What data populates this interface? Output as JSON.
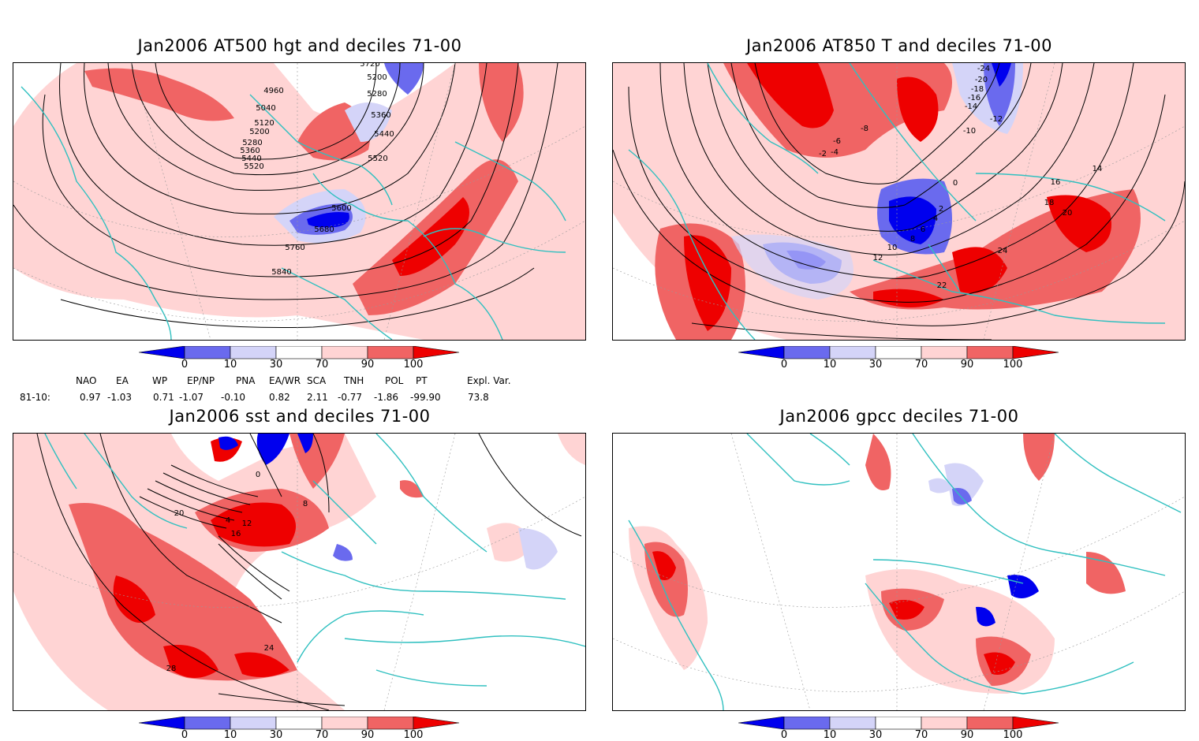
{
  "panels": [
    {
      "id": "p1",
      "title": "Jan2006 AT500 hgt and deciles 71-00",
      "contour_labels": [
        "4960",
        "5040",
        "5120",
        "5200",
        "5280",
        "5360",
        "5440",
        "5520",
        "5600",
        "5680",
        "5760",
        "5840",
        "5200",
        "5280",
        "5360",
        "5440",
        "5520",
        "5720"
      ]
    },
    {
      "id": "p2",
      "title": "Jan2006 AT850 T and deciles 71-00",
      "contour_labels": [
        "-24",
        "-20",
        "-18",
        "-16",
        "-14",
        "-12",
        "-10",
        "-8",
        "-6",
        "-4",
        "-2",
        "0",
        "2",
        "4",
        "6",
        "8",
        "10",
        "12",
        "14",
        "16",
        "18",
        "20",
        "22",
        "24"
      ]
    },
    {
      "id": "p3",
      "title": "Jan2006 sst and deciles 71-00",
      "contour_labels": [
        "0",
        "4",
        "8",
        "12",
        "16",
        "20",
        "24",
        "28"
      ]
    },
    {
      "id": "p4",
      "title": "Jan2006 gpcc deciles 71-00",
      "contour_labels": []
    }
  ],
  "colorbar": {
    "labels": [
      "0",
      "10",
      "30",
      "70",
      "90",
      "100"
    ],
    "colors": [
      "#0000ee",
      "#6a6aee",
      "#d4d4f8",
      "#ffffff",
      "#ffd4d4",
      "#f06464",
      "#ee0000"
    ]
  },
  "indices": {
    "row_label": "81-10:",
    "headers": [
      "NAO",
      "EA",
      "WP",
      "EP/NP",
      "PNA",
      "EA/WR",
      "SCA",
      "TNH",
      "POL",
      "PT",
      "Expl. Var."
    ],
    "values": [
      "0.97",
      "-1.03",
      "0.71",
      "-1.07",
      "-0.10",
      "0.82",
      "2.11",
      "-0.77",
      "-1.86",
      "-99.90",
      "73.8"
    ]
  }
}
